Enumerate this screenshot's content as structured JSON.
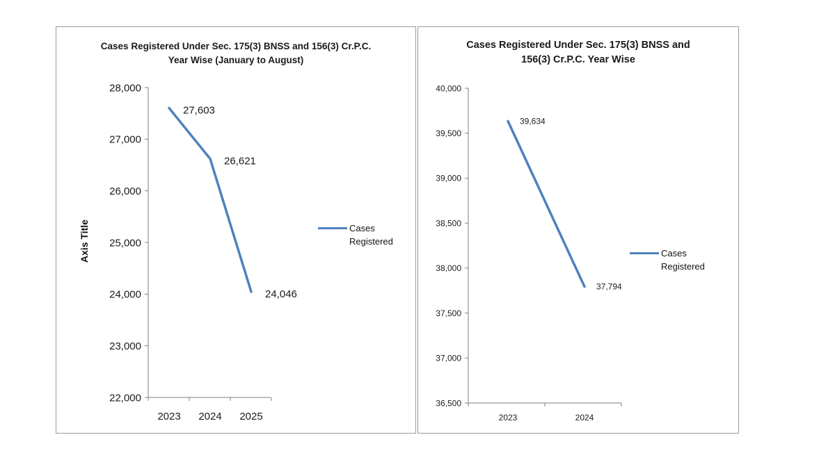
{
  "chart_data": [
    {
      "type": "line",
      "title": "Cases Registered Under Sec. 175(3) BNSS and 156(3) Cr.P.C. Year Wise (January to August)",
      "xlabel": "",
      "ylabel": "Axis Title",
      "categories": [
        "2023",
        "2024",
        "2025"
      ],
      "series": [
        {
          "name": "Cases Registered",
          "values": [
            27603,
            26621,
            24046
          ]
        }
      ],
      "data_labels": [
        "27,603",
        "26,621",
        "24,046"
      ],
      "ylim": [
        22000,
        28000
      ],
      "yticks": [
        22000,
        23000,
        24000,
        25000,
        26000,
        27000,
        28000
      ],
      "ytick_labels": [
        "22,000",
        "23,000",
        "24,000",
        "25,000",
        "26,000",
        "27,000",
        "28,000"
      ],
      "color": "#4f81bd",
      "grid": false,
      "legend": "right"
    },
    {
      "type": "line",
      "title": "Cases Registered Under Sec. 175(3) BNSS and 156(3) Cr.P.C. Year Wise",
      "xlabel": "",
      "ylabel": "",
      "categories": [
        "2023",
        "2024"
      ],
      "series": [
        {
          "name": "Cases Registered",
          "values": [
            39634,
            37794
          ]
        }
      ],
      "data_labels": [
        "39,634",
        "37,794"
      ],
      "ylim": [
        36500,
        40000
      ],
      "yticks": [
        36500,
        37000,
        37500,
        38000,
        38500,
        39000,
        39500,
        40000
      ],
      "ytick_labels": [
        "36,500",
        "37,000",
        "37,500",
        "38,000",
        "38,500",
        "39,000",
        "39,500",
        "40,000"
      ],
      "color": "#4f81bd",
      "grid": false,
      "legend": "right"
    }
  ]
}
